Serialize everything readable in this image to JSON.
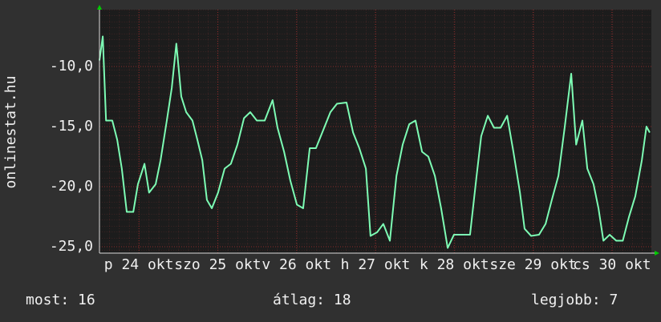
{
  "chart_data": {
    "type": "line",
    "ylabel": "onlinestat.hu",
    "x": [
      0,
      1,
      2,
      3.9,
      5.4,
      6.8,
      8.3,
      10.3,
      11.7,
      13.7,
      15.1,
      17.1,
      18.6,
      20.5,
      22,
      23.4,
      24.9,
      26.4,
      28.3,
      29.8,
      31.3,
      32.7,
      34.2,
      36.1,
      38.1,
      40,
      42,
      44,
      45.9,
      47.9,
      50.3,
      52.7,
      54.2,
      56.2,
      58.1,
      60.1,
      62,
      64,
      65.9,
      68.4,
      70.3,
      72.3,
      75.2,
      77.2,
      79.1,
      81.1,
      82.5,
      84.5,
      86.4,
      88.4,
      90.4,
      92.3,
      94.3,
      96.2,
      98.2,
      100.1,
      102.1,
      104,
      106,
      107.9,
      109.9,
      112.8,
      114.8,
      116.2,
      118.2,
      120.1,
      122.1,
      124.1,
      126,
      128,
      129.4,
      131.4,
      133.8,
      135.8,
      137.7,
      139.7,
      141.6,
      143.6,
      145.1,
      147,
      148.5,
      150.4,
      151.9,
      153.4,
      155.3,
      157.3,
      159.3,
      161.2,
      163.1,
      165.1,
      166.5,
      167.5
    ],
    "series": [
      {
        "color": "#7dfcb4",
        "values": [
          -9.5,
          -7.5,
          -14.5,
          -14.5,
          -16.1,
          -18.5,
          -22.1,
          -22.1,
          -19.8,
          -18.1,
          -20.5,
          -19.8,
          -17.8,
          -14.5,
          -11.8,
          -8.1,
          -12.5,
          -13.8,
          -14.5,
          -16.1,
          -17.8,
          -21.1,
          -21.8,
          -20.5,
          -18.5,
          -18.1,
          -16.5,
          -14.3,
          -13.8,
          -14.5,
          -14.5,
          -12.8,
          -15.1,
          -17.1,
          -19.5,
          -21.5,
          -21.8,
          -16.8,
          -16.8,
          -15.1,
          -13.8,
          -13.1,
          -13.0,
          -15.5,
          -16.8,
          -18.5,
          -24.1,
          -23.8,
          -23.1,
          -24.5,
          -19.1,
          -16.5,
          -14.8,
          -14.5,
          -17.1,
          -17.5,
          -19.1,
          -21.8,
          -25.1,
          -24.0,
          -24.0,
          -24.0,
          -19.1,
          -15.8,
          -14.1,
          -15.1,
          -15.1,
          -14.1,
          -17.1,
          -20.5,
          -23.5,
          -24.1,
          -24.0,
          -23.1,
          -21.1,
          -19.1,
          -15.1,
          -10.6,
          -16.5,
          -14.5,
          -18.5,
          -19.8,
          -21.8,
          -24.5,
          -24.0,
          -24.5,
          -24.5,
          -22.5,
          -20.8,
          -17.8,
          -15.0,
          -15.5
        ]
      }
    ],
    "xlim": [
      0,
      168
    ],
    "xticks": [
      {
        "value": 12,
        "label": "p 24 okt"
      },
      {
        "value": 36,
        "label": "szo 25 okt"
      },
      {
        "value": 60,
        "label": "v 26 okt"
      },
      {
        "value": 84,
        "label": "h 27 okt"
      },
      {
        "value": 108,
        "label": "k 28 okt"
      },
      {
        "value": 132,
        "label": "sze 29 okt"
      },
      {
        "value": 156,
        "label": "cs 30 okt"
      }
    ],
    "ylim": [
      -25.53,
      -5.27
    ],
    "yticks": [
      {
        "value": -10,
        "label": "-10,0"
      },
      {
        "value": -15,
        "label": "-15,0"
      },
      {
        "value": -20,
        "label": "-20,0"
      },
      {
        "value": -25,
        "label": "-25,0"
      }
    ],
    "grid": true,
    "footer": [
      "most: 16",
      "átlag: 18",
      "legjobb: 7"
    ]
  }
}
